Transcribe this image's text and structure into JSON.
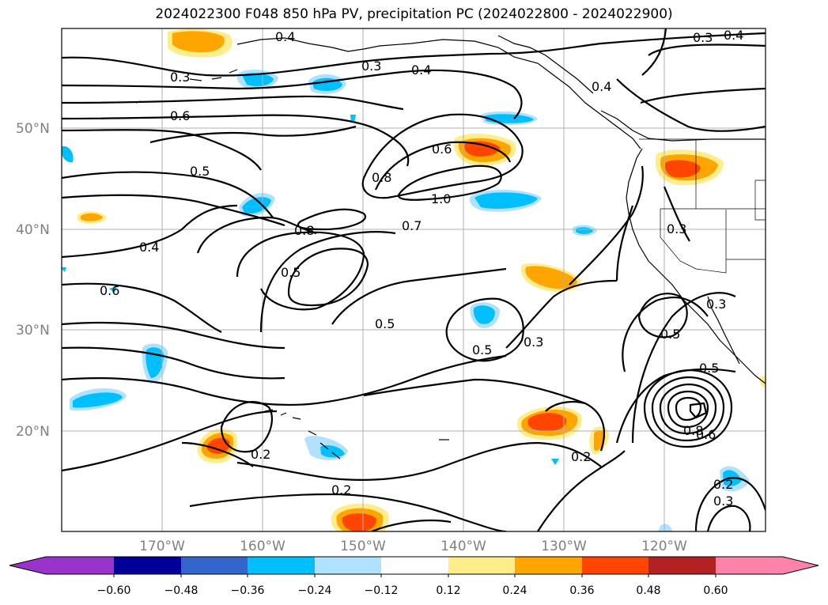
{
  "title": "2024022300 F048 850 hPa PV, precipitation PC (2024022800 - 2024022900)",
  "latitude_labels": [
    "50°N",
    "40°N",
    "30°N",
    "20°N"
  ],
  "longitude_labels": [
    "170°W",
    "160°W",
    "150°W",
    "140°W",
    "130°W",
    "120°W"
  ],
  "contour_labels": [
    "0.4",
    "0.3",
    "0.3",
    "0.4",
    "0.4",
    "0.3",
    "0.4",
    "0.6",
    "0.6",
    "0.5",
    "0.8",
    "1.0",
    "0.8",
    "0.7",
    "0.4",
    "0.5",
    "0.6",
    "0.5",
    "0.3",
    "0.5",
    "0.3",
    "0.5",
    "0.5",
    "0.2",
    "0.2",
    "0.2",
    "0.8",
    "0.6",
    "0.2",
    "0.3",
    "0.3"
  ],
  "colorbar": {
    "ticks": [
      "−0.60",
      "−0.48",
      "−0.36",
      "−0.24",
      "−0.12",
      "0.12",
      "0.24",
      "0.36",
      "0.48",
      "0.60"
    ],
    "colors": [
      "#9933cc",
      "#000099",
      "#3366cc",
      "#00bfff",
      "#b0e2ff",
      "#ffffff",
      "#ffec8b",
      "#ffa500",
      "#ff4500",
      "#b22222",
      "#ff82ab"
    ]
  }
}
